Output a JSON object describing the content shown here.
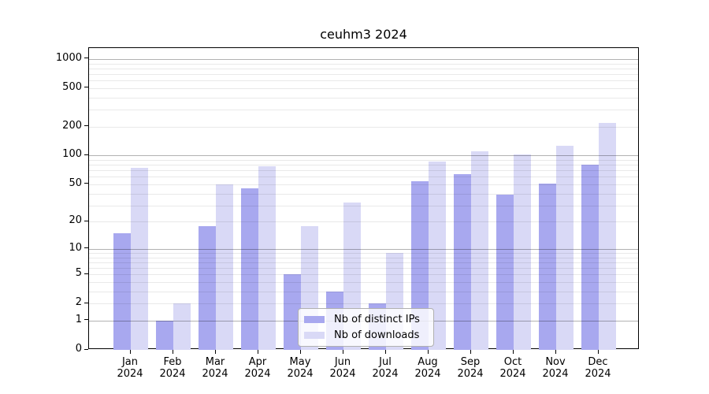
{
  "chart_data": {
    "type": "bar",
    "title": "ceuhm3 2024",
    "categories": [
      "Jan",
      "Feb",
      "Mar",
      "Apr",
      "May",
      "Jun",
      "Jul",
      "Aug",
      "Sep",
      "Oct",
      "Nov",
      "Dec"
    ],
    "x_year_label": "2024",
    "series": [
      {
        "name": "Nb of distinct IPs",
        "color": "#a8a8ef",
        "values": [
          15,
          1,
          18,
          45,
          5,
          3,
          2,
          54,
          64,
          39,
          51,
          80
        ]
      },
      {
        "name": "Nb of downloads",
        "color": "#d9d9f6",
        "values": [
          74,
          2,
          50,
          78,
          18,
          32,
          9,
          87,
          110,
          102,
          127,
          220
        ]
      }
    ],
    "yscale": "log1p",
    "ylim": [
      0,
      1300
    ],
    "y_ticks": [
      0,
      1,
      2,
      5,
      10,
      20,
      50,
      100,
      200,
      500,
      1000
    ],
    "y_major_gridlines": [
      1,
      10,
      100,
      1000
    ],
    "grid": true,
    "legend_position": "lower center inside",
    "colors": {
      "bar_dark": "#a8a8ef",
      "bar_light": "#d9d9f6",
      "major_grid": "#b3b3b3",
      "minor_grid": "#e8e8e8",
      "axis": "#000000",
      "background": "#ffffff"
    }
  }
}
